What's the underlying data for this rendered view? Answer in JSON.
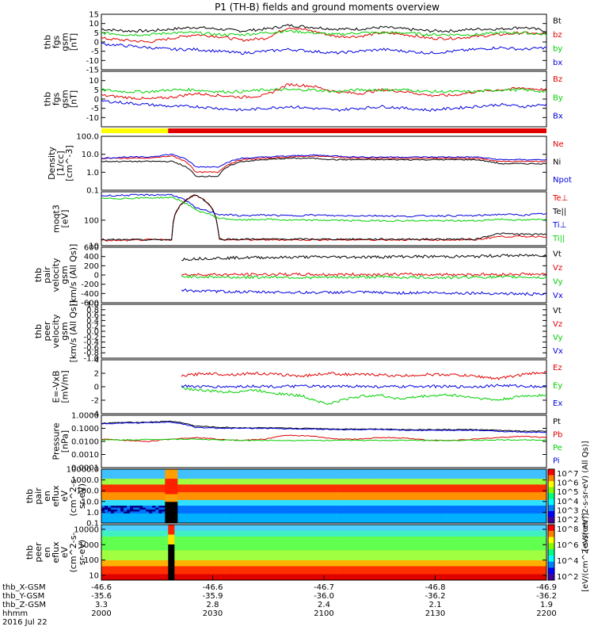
{
  "header": {
    "title": "P1 (TH-B) fields and ground moments overview"
  },
  "colors": {
    "black": "#000000",
    "red": "#e00000",
    "green": "#00d000",
    "blue": "#0000e0",
    "yellow": "#ffff00",
    "barred": "#e00000"
  },
  "chart_data": [
    {
      "type": "line",
      "id": "p1",
      "ylabel": [
        "thb",
        "fgs",
        "gsm",
        "[nT]"
      ],
      "ylim": [
        -15,
        15
      ],
      "y_ticks": [
        "15",
        "10",
        "5",
        "0",
        "-5",
        "-10",
        "-15"
      ],
      "series": [
        {
          "name": "Bt",
          "color": "black",
          "values": [
            7,
            6,
            6,
            7,
            8,
            7,
            6,
            7,
            9,
            8,
            7,
            7,
            8,
            7,
            6,
            6,
            7,
            7,
            8,
            6
          ]
        },
        {
          "name": "bz",
          "color": "red",
          "values": [
            2,
            1,
            0,
            2,
            4,
            3,
            1,
            2,
            8,
            6,
            3,
            3,
            5,
            4,
            2,
            2,
            3,
            4,
            5,
            4
          ]
        },
        {
          "name": "by",
          "color": "green",
          "values": [
            5,
            4,
            4,
            5,
            5,
            4,
            4,
            5,
            6,
            5,
            4,
            5,
            5,
            5,
            4,
            4,
            4,
            5,
            5,
            4
          ]
        },
        {
          "name": "bx",
          "color": "blue",
          "values": [
            -1,
            -2,
            -3,
            -4,
            -4,
            -5,
            -6,
            -5,
            -4,
            -5,
            -6,
            -5,
            -4,
            -5,
            -6,
            -5,
            -4,
            -3,
            -4,
            -3
          ]
        }
      ]
    },
    {
      "type": "line",
      "id": "p2",
      "ylabel": [
        "thb",
        "fgs",
        "gsm",
        "[nT]"
      ],
      "ylim": [
        -15,
        15
      ],
      "y_ticks": [
        "10",
        "5",
        "0",
        "-5",
        "-10"
      ],
      "series": [
        {
          "name": "Bz",
          "color": "red",
          "values": [
            2,
            1,
            0,
            1,
            3,
            2,
            1,
            2,
            8,
            7,
            4,
            3,
            5,
            4,
            2,
            2,
            4,
            5,
            6,
            5
          ]
        },
        {
          "name": "By",
          "color": "green",
          "values": [
            5,
            4,
            4,
            5,
            5,
            4,
            4,
            5,
            5,
            5,
            4,
            5,
            5,
            5,
            4,
            4,
            4,
            5,
            5,
            4
          ]
        },
        {
          "name": "Bx",
          "color": "blue",
          "values": [
            -1,
            -2,
            -3,
            -4,
            -4,
            -5,
            -6,
            -5,
            -4,
            -5,
            -6,
            -5,
            -4,
            -5,
            -6,
            -5,
            -4,
            -3,
            -4,
            -3
          ]
        }
      ]
    },
    {
      "type": "line",
      "id": "p3",
      "ylabel": [
        "Density",
        "[1/cc]",
        "[cm^-3]"
      ],
      "scale": "log",
      "ylim": [
        0.1,
        100
      ],
      "y_ticks": [
        "100.0",
        "10.0",
        "1.0",
        "0.1"
      ],
      "series": [
        {
          "name": "Ne",
          "color": "red",
          "values": [
            6,
            6,
            6,
            8,
            1,
            1,
            5,
            6,
            7,
            8,
            7,
            6,
            6,
            6,
            6,
            6,
            6,
            4,
            4,
            4
          ]
        },
        {
          "name": "Ni",
          "color": "black",
          "values": [
            4,
            4,
            4,
            4,
            0.6,
            0.6,
            4,
            5,
            6,
            6,
            5,
            5,
            5,
            5,
            5,
            5,
            5,
            3,
            3,
            3
          ]
        },
        {
          "name": "Npot",
          "color": "blue",
          "values": [
            6,
            7,
            7,
            10,
            2,
            2,
            6,
            7,
            8,
            9,
            8,
            7,
            7,
            7,
            7,
            7,
            7,
            5,
            5,
            5
          ]
        }
      ]
    },
    {
      "type": "line",
      "id": "p4",
      "ylabel": [
        "moqt3",
        "[eV]"
      ],
      "scale": "log",
      "ylim": [
        10,
        1300
      ],
      "y_ticks": [
        "100",
        "10"
      ],
      "series": [
        {
          "name": "Te⊥",
          "color": "red",
          "values": [
            16,
            16,
            17,
            17,
            1000,
            17,
            17,
            17,
            17,
            17,
            17,
            17,
            17,
            17,
            17,
            17,
            17,
            23,
            23,
            23
          ]
        },
        {
          "name": "Te||",
          "color": "black",
          "values": [
            17,
            17,
            17,
            17,
            1000,
            18,
            18,
            18,
            18,
            18,
            18,
            18,
            18,
            18,
            18,
            18,
            18,
            30,
            28,
            28
          ]
        },
        {
          "name": "Ti⊥",
          "color": "blue",
          "values": [
            900,
            950,
            980,
            1000,
            300,
            170,
            150,
            160,
            150,
            160,
            150,
            150,
            150,
            140,
            150,
            150,
            150,
            170,
            160,
            180
          ]
        },
        {
          "name": "Ti||",
          "color": "green",
          "values": [
            700,
            720,
            750,
            780,
            250,
            120,
            100,
            110,
            100,
            100,
            100,
            95,
            95,
            95,
            95,
            95,
            95,
            110,
            100,
            110
          ]
        }
      ]
    },
    {
      "type": "line",
      "id": "p5",
      "ylabel": [
        "thb",
        "pair",
        "velocity",
        "gsm",
        "[km/s (All Qs)]"
      ],
      "ylim": [
        -600,
        600
      ],
      "y_ticks": [
        "600",
        "400",
        "200",
        "0",
        "-200",
        "-400",
        "-600"
      ],
      "x_start": 2036,
      "series": [
        {
          "name": "Vt",
          "color": "black",
          "values": [
            340,
            360,
            370,
            380,
            380,
            390,
            390,
            390,
            390,
            400,
            400,
            400,
            400,
            420,
            420,
            430
          ]
        },
        {
          "name": "Vz",
          "color": "red",
          "values": [
            5,
            10,
            8,
            10,
            15,
            10,
            10,
            12,
            10,
            15,
            10,
            10,
            12,
            10,
            20,
            10
          ]
        },
        {
          "name": "Vy",
          "color": "green",
          "values": [
            -30,
            -40,
            -50,
            -50,
            -40,
            -60,
            -50,
            -50,
            -40,
            -50,
            -50,
            -60,
            -40,
            -50,
            -40,
            -60
          ]
        },
        {
          "name": "Vx",
          "color": "blue",
          "values": [
            -330,
            -350,
            -360,
            -370,
            -370,
            -380,
            -380,
            -370,
            -380,
            -390,
            -380,
            -390,
            -390,
            -400,
            -410,
            -420
          ]
        }
      ]
    },
    {
      "type": "line",
      "id": "p6",
      "ylabel": [
        "thb",
        "peer",
        "velocity",
        "gsm",
        "[km/s (All Qs)]"
      ],
      "ylim": [
        -1,
        1
      ],
      "y_ticks": [
        "1.0",
        "0.8",
        "0.6",
        "0.4",
        "0.2",
        "0.0",
        "-0.2",
        "-0.4",
        "-0.6",
        "-0.8",
        "-1.0"
      ],
      "series": [
        {
          "name": "Vt",
          "color": "black",
          "values": []
        },
        {
          "name": "Vz",
          "color": "red",
          "values": []
        },
        {
          "name": "Vy",
          "color": "green",
          "values": []
        },
        {
          "name": "Vx",
          "color": "blue",
          "values": []
        }
      ]
    },
    {
      "type": "line",
      "id": "p7",
      "ylabel": [
        "E=-VxB",
        "[mV/m]"
      ],
      "ylim": [
        -4,
        4
      ],
      "y_ticks": [
        "4",
        "2",
        "0",
        "-2",
        "-4"
      ],
      "x_start": 2036,
      "series": [
        {
          "name": "Ez",
          "color": "red",
          "values": [
            1.6,
            2.0,
            1.8,
            2.0,
            1.8,
            1.6,
            2.0,
            1.8,
            1.8,
            1.6,
            1.8,
            1.8,
            1.6,
            1.2,
            1.8,
            2.2
          ]
        },
        {
          "name": "Ey",
          "color": "green",
          "values": [
            -0.2,
            -0.6,
            -0.8,
            -0.5,
            -1.0,
            -1.4,
            -2.6,
            -1.6,
            -1.2,
            -1.8,
            -1.4,
            -1.2,
            -1.6,
            -2.0,
            -1.4,
            -1.2
          ]
        },
        {
          "name": "Ex",
          "color": "blue",
          "values": [
            0.1,
            0.0,
            0.0,
            0.1,
            0.0,
            0.1,
            0.0,
            0.1,
            0.0,
            0.0,
            0.1,
            0.0,
            0.0,
            0.2,
            0.1,
            0.0
          ]
        }
      ]
    },
    {
      "type": "line",
      "id": "p8",
      "ylabel": [
        "Pressure",
        "[nPa]"
      ],
      "scale": "log",
      "ylim": [
        0.0001,
        1
      ],
      "y_ticks": [
        "1.0000",
        "0.1000",
        "0.0100",
        "0.0010",
        "0.0001"
      ],
      "series": [
        {
          "name": "Pt",
          "color": "black",
          "values": [
            0.25,
            0.28,
            0.3,
            0.35,
            0.15,
            0.12,
            0.11,
            0.11,
            0.1,
            0.1,
            0.09,
            0.09,
            0.09,
            0.08,
            0.08,
            0.08,
            0.08,
            0.07,
            0.06,
            0.06
          ]
        },
        {
          "name": "Pb",
          "color": "red",
          "values": [
            0.015,
            0.012,
            0.01,
            0.015,
            0.02,
            0.015,
            0.012,
            0.015,
            0.03,
            0.025,
            0.015,
            0.015,
            0.02,
            0.018,
            0.012,
            0.012,
            0.015,
            0.02,
            0.025,
            0.02
          ]
        },
        {
          "name": "Pe",
          "color": "green",
          "values": [
            0.013,
            0.013,
            0.014,
            0.015,
            0.015,
            0.013,
            0.012,
            0.012,
            0.012,
            0.012,
            0.012,
            0.012,
            0.012,
            0.012,
            0.012,
            0.012,
            0.012,
            0.013,
            0.013,
            0.013
          ]
        },
        {
          "name": "Pi",
          "color": "blue",
          "values": [
            0.22,
            0.25,
            0.27,
            0.3,
            0.12,
            0.1,
            0.1,
            0.1,
            0.09,
            0.09,
            0.08,
            0.08,
            0.08,
            0.07,
            0.07,
            0.07,
            0.07,
            0.06,
            0.05,
            0.05
          ]
        }
      ]
    },
    {
      "type": "heatmap",
      "id": "p9",
      "ylabel": [
        "thb",
        "pair",
        "en",
        "eflux",
        "eV",
        "(cm^2-s-",
        "sr-eV)"
      ],
      "scale": "log",
      "ylim": [
        0.1,
        10000
      ],
      "y_ticks": [
        "10000.0",
        "1000.0",
        "100.0",
        "10.0",
        "1.0",
        "0.1"
      ],
      "colorbar_label": "[eV/(cm^2-s-sr-eV) (All Qs)]",
      "colorbar_ticks": [
        "10^7",
        "10^6",
        "10^5",
        "10^4",
        "10^3",
        "10^2"
      ]
    },
    {
      "type": "heatmap",
      "id": "p10",
      "ylabel": [
        "thb",
        "peer",
        "en",
        "eflux",
        "eV",
        "(cm^2-s-",
        "sr-eV)"
      ],
      "scale": "log",
      "ylim": [
        5,
        20000
      ],
      "y_ticks": [
        "10000",
        "1000",
        "100",
        "10"
      ],
      "colorbar_label": "[eV/(cm^2-s-sr-eV)]",
      "colorbar_ticks": [
        "10^8",
        "10^6",
        "10^4",
        "10^2"
      ]
    }
  ],
  "bar": {
    "yellow_end": 2030
  },
  "xaxis": {
    "min": 2000,
    "max": 2200,
    "rows": [
      {
        "label": "thb_X-GSM",
        "values": [
          "-46.6",
          "-46.6",
          "-46.7",
          "-46.8",
          "-46.9"
        ]
      },
      {
        "label": "thb_Y-GSM",
        "values": [
          "-35.6",
          "-35.9",
          "-36.0",
          "-36.2",
          "-36.2"
        ]
      },
      {
        "label": "thb_Z-GSM",
        "values": [
          "3.3",
          "2.8",
          "2.4",
          "2.1",
          "1.9"
        ]
      },
      {
        "label": "hhmm",
        "values": [
          "2000",
          "2030",
          "2100",
          "2130",
          "2200"
        ]
      }
    ],
    "date": "2016 Jul 22"
  }
}
